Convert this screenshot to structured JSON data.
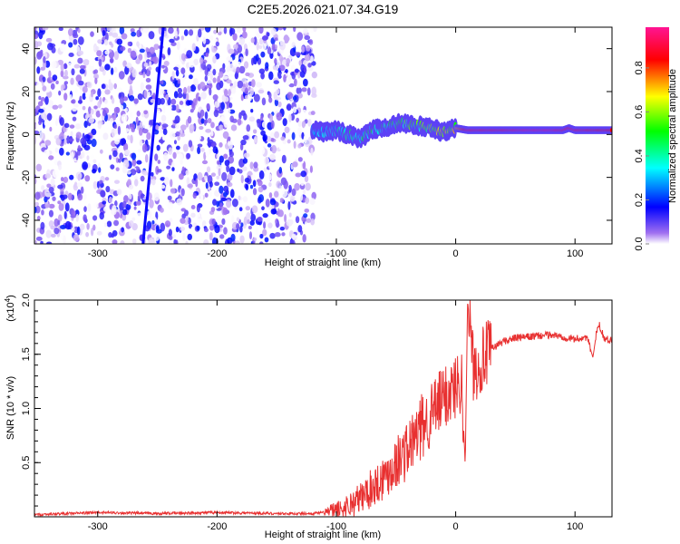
{
  "chart_data": [
    {
      "type": "heatmap",
      "title": "C2E5.2026.021.07.34.G19",
      "xlabel": "Height of straight line (km)",
      "ylabel": "Frequency (Hz)",
      "xlim": [
        -353,
        131
      ],
      "ylim": [
        -51,
        50
      ],
      "xticks": [
        -300,
        -200,
        -100,
        0,
        100
      ],
      "xtick_labels": [
        "-300",
        "-200",
        "-100",
        "0",
        "100"
      ],
      "yticks": [
        40,
        20,
        0,
        -20,
        -40
      ],
      "ytick_labels": [
        "40",
        "20",
        "0",
        "-20",
        "-40"
      ],
      "noise_region_x": [
        -353,
        -118
      ],
      "streak": {
        "x": [
          -262,
          -245
        ],
        "y": [
          -51,
          50
        ]
      },
      "trace": {
        "x": [
          -120,
          -110,
          -100,
          -90,
          -80,
          -70,
          -60,
          -50,
          -40,
          -30,
          -20,
          -10,
          -5,
          0,
          10,
          20,
          40,
          60,
          80,
          90,
          95,
          100,
          120,
          131
        ],
        "y": [
          2,
          1,
          2,
          0,
          -2,
          2,
          3,
          5,
          5,
          4,
          3,
          1,
          2,
          3,
          2,
          2,
          2,
          2,
          2,
          2,
          3,
          2,
          2,
          2
        ],
        "amplitude": [
          0.3,
          0.35,
          0.4,
          0.45,
          0.45,
          0.5,
          0.45,
          0.5,
          0.55,
          0.55,
          0.6,
          0.8,
          0.6,
          0.7,
          0.9,
          0.9,
          0.9,
          0.95,
          0.95,
          0.9,
          0.9,
          0.9,
          0.85,
          0.85
        ]
      },
      "colorbar": {
        "label": "Normalized spectral amplitude",
        "range": [
          0,
          1
        ],
        "ticks": [
          "0.0",
          "0.2",
          "0.4",
          "0.6",
          "0.8"
        ],
        "colors": [
          "#ffffff",
          "#8a2be2",
          "#0000ff",
          "#00ffff",
          "#00ff00",
          "#ffff00",
          "#ff0000",
          "#ff1493"
        ]
      }
    },
    {
      "type": "line",
      "xlabel": "Height of straight line (km)",
      "ylabel": "SNR (10 * v/v)",
      "y_multiplier": "(x10",
      "y_multiplier_exp": "4",
      "xlim": [
        -353,
        131
      ],
      "ylim": [
        0,
        2.0
      ],
      "xticks": [
        -300,
        -200,
        -100,
        0,
        100
      ],
      "xtick_labels": [
        "-300",
        "-200",
        "-100",
        "0",
        "100"
      ],
      "yticks": [
        0.5,
        1.0,
        1.5,
        2.0
      ],
      "ytick_labels": [
        "0.5",
        "1.0",
        "1.5",
        "2.0"
      ],
      "color": "#e83030",
      "series": [
        {
          "name": "SNR",
          "x": [
            -353,
            -300,
            -250,
            -200,
            -150,
            -120,
            -100,
            -90,
            -80,
            -70,
            -60,
            -50,
            -40,
            -30,
            -20,
            -10,
            0,
            5,
            8,
            10,
            15,
            20,
            30,
            40,
            50,
            60,
            80,
            100,
            110,
            115,
            118,
            120,
            125,
            131
          ],
          "y": [
            0.02,
            0.04,
            0.03,
            0.04,
            0.03,
            0.03,
            0.05,
            0.1,
            0.17,
            0.27,
            0.37,
            0.5,
            0.62,
            0.8,
            0.95,
            1.1,
            1.2,
            1.28,
            0.47,
            2.0,
            1.35,
            1.42,
            1.55,
            1.62,
            1.65,
            1.66,
            1.68,
            1.64,
            1.66,
            1.47,
            1.7,
            1.78,
            1.64,
            1.63
          ]
        }
      ]
    }
  ]
}
